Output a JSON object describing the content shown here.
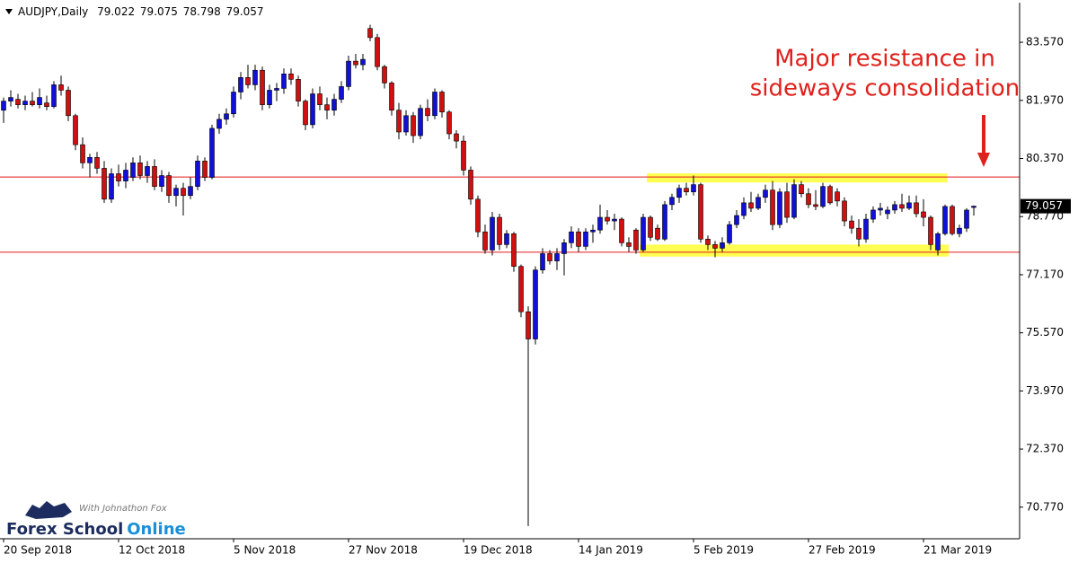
{
  "chart_data": {
    "type": "candlestick",
    "symbol": "AUDJPY,Daily",
    "annotation": [
      "Major resistance in",
      "sideways consolidation"
    ],
    "logo": {
      "tagline": "With Johnathon Fox",
      "name": "Forex School",
      "name_accent": "Online"
    },
    "up_color": "#1010d8",
    "down_color": "#d01010",
    "wick_color": "#000000",
    "level_color": "#e01a1a",
    "zone_color": "#ffff33",
    "annotation_color": "#e0201b",
    "categories": [
      "20 Sep 2018",
      null,
      null,
      null,
      null,
      null,
      null,
      null,
      null,
      null,
      null,
      null,
      null,
      null,
      null,
      null,
      "12 Oct 2018",
      null,
      null,
      null,
      null,
      null,
      null,
      null,
      null,
      null,
      null,
      null,
      null,
      null,
      null,
      null,
      "5 Nov 2018",
      null,
      null,
      null,
      null,
      null,
      null,
      null,
      null,
      null,
      null,
      null,
      null,
      null,
      null,
      null,
      "27 Nov 2018",
      null,
      null,
      null,
      null,
      null,
      null,
      null,
      null,
      null,
      null,
      null,
      null,
      null,
      null,
      null,
      "19 Dec 2018",
      null,
      null,
      null,
      null,
      null,
      null,
      null,
      null,
      null,
      null,
      null,
      null,
      null,
      null,
      null,
      "14 Jan 2019",
      null,
      null,
      null,
      null,
      null,
      null,
      null,
      null,
      null,
      null,
      null,
      null,
      null,
      null,
      null,
      "5 Feb 2019",
      null,
      null,
      null,
      null,
      null,
      null,
      null,
      null,
      null,
      null,
      null,
      null,
      null,
      null,
      null,
      "27 Feb 2019",
      null,
      null,
      null,
      null,
      null,
      null,
      null,
      null,
      null,
      null,
      null,
      null,
      null,
      null,
      null,
      "21 Mar 2019",
      null,
      null,
      null,
      null,
      null,
      null,
      null
    ],
    "open": [
      81.7,
      81.95,
      82.0,
      81.85,
      81.95,
      81.85,
      81.9,
      81.8,
      82.4,
      82.25,
      81.55,
      80.75,
      80.25,
      80.4,
      80.1,
      79.25,
      79.95,
      79.75,
      79.85,
      80.25,
      79.9,
      80.15,
      79.6,
      79.9,
      79.35,
      79.55,
      79.35,
      79.6,
      80.3,
      79.85,
      81.2,
      81.45,
      81.6,
      82.2,
      82.6,
      82.4,
      82.8,
      81.85,
      82.25,
      82.3,
      82.7,
      82.55,
      81.95,
      81.3,
      82.15,
      81.85,
      81.7,
      82.0,
      82.35,
      83.05,
      82.95,
      83.95,
      83.7,
      82.9,
      82.45,
      81.7,
      81.1,
      81.55,
      81.0,
      81.75,
      81.55,
      82.2,
      81.65,
      81.05,
      80.85,
      80.05,
      79.25,
      78.35,
      77.85,
      78.75,
      78.0,
      78.3,
      77.4,
      76.15,
      75.4,
      77.3,
      77.75,
      77.55,
      77.75,
      78.05,
      78.35,
      77.95,
      78.35,
      78.4,
      78.75,
      78.65,
      78.7,
      78.05,
      78.4,
      77.85,
      78.75,
      78.45,
      78.15,
      79.1,
      79.3,
      79.55,
      79.45,
      79.65,
      78.15,
      78.0,
      77.9,
      78.05,
      78.55,
      78.8,
      79.15,
      79.0,
      79.3,
      79.5,
      78.55,
      79.45,
      78.75,
      79.65,
      79.4,
      79.1,
      79.05,
      79.6,
      79.45,
      79.2,
      78.65,
      78.45,
      78.15,
      78.7,
      78.95,
      78.85,
      78.95,
      79.1,
      79.0,
      79.15,
      78.9,
      78.75,
      77.85,
      78.3,
      79.05,
      78.3,
      78.45,
      79.022
    ],
    "high": [
      82.05,
      82.25,
      82.15,
      82.1,
      82.2,
      82.3,
      82.1,
      82.5,
      82.65,
      82.35,
      81.6,
      80.95,
      80.5,
      80.55,
      80.3,
      80.1,
      80.2,
      80.25,
      80.4,
      80.45,
      80.3,
      80.35,
      80.05,
      80.0,
      79.65,
      79.7,
      79.85,
      80.45,
      80.4,
      81.3,
      81.6,
      81.75,
      82.35,
      82.75,
      82.95,
      82.95,
      82.9,
      82.4,
      82.45,
      82.85,
      82.85,
      82.65,
      82.0,
      82.3,
      82.35,
      82.05,
      82.15,
      82.5,
      83.2,
      83.25,
      83.25,
      84.05,
      83.8,
      82.95,
      82.5,
      81.9,
      81.7,
      81.65,
      81.85,
      82.0,
      82.3,
      82.25,
      81.7,
      81.15,
      81.0,
      80.15,
      79.35,
      78.55,
      78.9,
      78.85,
      78.4,
      78.35,
      77.45,
      76.3,
      77.4,
      77.9,
      77.85,
      77.9,
      78.15,
      78.5,
      78.45,
      78.45,
      78.55,
      79.1,
      78.95,
      78.85,
      78.75,
      78.2,
      78.45,
      78.85,
      78.8,
      78.55,
      79.2,
      79.4,
      79.65,
      79.7,
      79.9,
      79.7,
      78.25,
      78.1,
      78.2,
      78.65,
      78.95,
      79.3,
      79.45,
      79.4,
      79.65,
      79.75,
      79.55,
      79.7,
      79.8,
      79.75,
      79.55,
      79.5,
      79.7,
      79.65,
      79.55,
      79.3,
      78.8,
      78.7,
      78.85,
      79.05,
      79.15,
      79.05,
      79.2,
      79.4,
      79.35,
      79.35,
      79.25,
      78.8,
      78.35,
      79.1,
      79.1,
      78.55,
      79.0,
      79.075
    ],
    "low": [
      81.35,
      81.8,
      81.75,
      81.7,
      81.8,
      81.75,
      81.7,
      81.75,
      82.1,
      81.4,
      80.6,
      80.1,
      79.85,
      79.95,
      79.15,
      79.15,
      79.6,
      79.55,
      79.75,
      79.8,
      79.7,
      79.5,
      79.45,
      79.15,
      79.05,
      78.8,
      79.25,
      79.5,
      79.75,
      79.8,
      81.05,
      81.3,
      81.5,
      82.0,
      82.3,
      82.25,
      81.7,
      81.75,
      81.95,
      82.15,
      82.4,
      81.8,
      81.15,
      81.2,
      81.7,
      81.45,
      81.55,
      81.9,
      82.25,
      82.85,
      82.8,
      83.6,
      82.8,
      82.3,
      81.55,
      80.9,
      81.0,
      80.8,
      80.9,
      81.4,
      81.45,
      81.5,
      80.9,
      80.65,
      79.9,
      79.1,
      78.2,
      77.75,
      77.7,
      77.85,
      77.9,
      77.25,
      76.0,
      70.25,
      75.25,
      77.2,
      77.45,
      77.3,
      77.15,
      77.9,
      77.8,
      77.85,
      78.05,
      78.3,
      78.55,
      78.4,
      77.95,
      77.8,
      77.75,
      77.8,
      78.1,
      78.1,
      78.1,
      78.95,
      79.15,
      79.35,
      79.35,
      78.05,
      77.85,
      77.65,
      77.8,
      78.0,
      78.45,
      78.7,
      78.9,
      78.95,
      79.15,
      78.4,
      78.45,
      78.6,
      78.7,
      79.3,
      79.0,
      78.95,
      79.0,
      79.1,
      79.05,
      78.5,
      78.3,
      77.95,
      78.05,
      78.6,
      78.8,
      78.7,
      78.85,
      78.9,
      78.95,
      78.75,
      78.5,
      77.85,
      77.7,
      78.25,
      78.25,
      78.2,
      78.35,
      78.798
    ],
    "close": [
      81.95,
      82.05,
      81.85,
      81.95,
      81.85,
      82.05,
      81.8,
      82.4,
      82.25,
      81.55,
      80.75,
      80.25,
      80.4,
      80.1,
      79.25,
      79.95,
      79.75,
      80.05,
      80.25,
      79.9,
      80.15,
      79.6,
      79.9,
      79.35,
      79.55,
      79.35,
      79.6,
      80.3,
      79.85,
      81.2,
      81.45,
      81.6,
      82.2,
      82.6,
      82.4,
      82.8,
      81.85,
      82.25,
      82.3,
      82.7,
      82.55,
      81.95,
      81.3,
      82.15,
      81.85,
      81.7,
      82.0,
      82.35,
      83.05,
      82.95,
      83.1,
      83.7,
      82.9,
      82.45,
      81.7,
      81.1,
      81.55,
      81.0,
      81.75,
      81.55,
      82.2,
      81.65,
      81.05,
      80.85,
      80.05,
      79.25,
      78.35,
      77.85,
      78.75,
      78.0,
      78.3,
      77.4,
      76.15,
      75.4,
      77.3,
      77.75,
      77.55,
      77.75,
      78.05,
      78.35,
      77.95,
      78.35,
      78.4,
      78.75,
      78.65,
      78.7,
      78.05,
      77.95,
      77.85,
      78.75,
      78.2,
      78.15,
      79.1,
      79.3,
      79.55,
      79.45,
      79.65,
      78.15,
      78.0,
      77.9,
      78.05,
      78.55,
      78.8,
      79.15,
      79.0,
      79.3,
      79.5,
      78.55,
      79.45,
      78.75,
      79.65,
      79.4,
      79.1,
      79.05,
      79.6,
      79.15,
      79.2,
      78.65,
      78.45,
      78.15,
      78.7,
      78.95,
      79.0,
      78.95,
      79.1,
      79.0,
      79.15,
      78.85,
      78.75,
      78.0,
      78.3,
      79.05,
      78.3,
      78.45,
      78.95,
      79.057
    ],
    "levels": [
      79.86,
      77.79
    ],
    "zones": [
      {
        "ylim": [
          79.71,
          79.96
        ],
        "xrange": [
          89.5,
          131.3
        ]
      },
      {
        "ylim": [
          77.67,
          78.0
        ],
        "xrange": [
          88.5,
          131.5
        ]
      }
    ],
    "ylim": [
      69.9,
      84.66
    ],
    "yticks": [
      {
        "value": 83.57,
        "label": "83.570"
      },
      {
        "value": 81.97,
        "label": "81.970"
      },
      {
        "value": 80.37,
        "label": "80.370"
      },
      {
        "value": 78.77,
        "label": "78.770"
      },
      {
        "value": 77.17,
        "label": "77.170"
      },
      {
        "value": 75.57,
        "label": "75.570"
      },
      {
        "value": 73.97,
        "label": "73.970"
      },
      {
        "value": 72.37,
        "label": "72.370"
      },
      {
        "value": 70.77,
        "label": "70.770"
      }
    ]
  }
}
